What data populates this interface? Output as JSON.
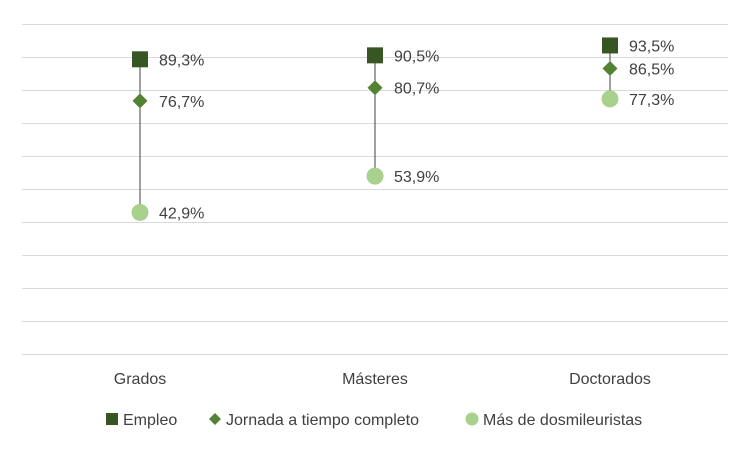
{
  "chart_data": {
    "type": "scatter",
    "title": "",
    "xlabel": "",
    "ylabel": "",
    "ylim": [
      0,
      100
    ],
    "grid": true,
    "legend_position": "bottom",
    "categories": [
      "Grados",
      "Másteres",
      "Doctorados"
    ],
    "series": [
      {
        "name": "Empleo",
        "marker": "square",
        "color": "#375623",
        "values": [
          89.3,
          90.5,
          93.5
        ],
        "labels": [
          "89,3%",
          "90,5%",
          "93,5%"
        ]
      },
      {
        "name": "Jornada a tiempo completo",
        "marker": "diamond",
        "color": "#548235",
        "values": [
          76.7,
          80.7,
          86.5
        ],
        "labels": [
          "76,7%",
          "80,7%",
          "86,5%"
        ]
      },
      {
        "name": "Más de dosmileuristas",
        "marker": "circle",
        "color": "#a9d18e",
        "values": [
          42.9,
          53.9,
          77.3
        ],
        "labels": [
          "42,9%",
          "53,9%",
          "77,3%"
        ]
      }
    ],
    "colors": {
      "gridline": "#d9d9d9",
      "connector": "#404040",
      "text": "#404040"
    }
  }
}
